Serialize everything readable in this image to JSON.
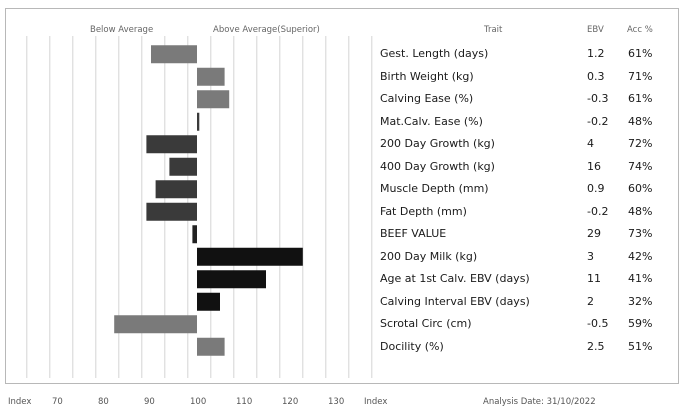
{
  "header": {
    "below": "Below Average",
    "above": "Above Average(Superior)",
    "trait": "Trait",
    "ebv": "EBV",
    "acc": "Acc %"
  },
  "footer": {
    "index_left": "Index",
    "index_right": "Index",
    "analysis": "Analysis Date: 31/10/2022"
  },
  "chart_data": {
    "type": "bar",
    "orientation": "horizontal",
    "x_axis": {
      "label": "Index",
      "ticks": [
        70,
        80,
        90,
        100,
        110,
        120,
        130
      ],
      "range": [
        60,
        140
      ],
      "baseline": 100
    },
    "grid": true,
    "categories": [
      "Gest. Length (days)",
      "Birth Weight (kg)",
      "Calving Ease (%)",
      "Mat.Calv. Ease (%)",
      "200 Day Growth (kg)",
      "400 Day Growth (kg)",
      "Muscle Depth (mm)",
      "Fat Depth (mm)",
      "BEEF VALUE",
      "200 Day Milk (kg)",
      "Age at 1st Calv. EBV (days)",
      "Calving Interval EBV (days)",
      "Scrotal Circ (cm)",
      "Docility (%)"
    ],
    "index_values": [
      90,
      106,
      107,
      100.5,
      89,
      94,
      91,
      89,
      99,
      123,
      115,
      105,
      82,
      106
    ],
    "ebv": [
      "1.2",
      "0.3",
      "-0.3",
      "-0.2",
      "4",
      "16",
      "0.9",
      "-0.2",
      "29",
      "3",
      "11",
      "2",
      "-0.5",
      "2.5"
    ],
    "acc": [
      "61%",
      "71%",
      "61%",
      "48%",
      "72%",
      "74%",
      "60%",
      "48%",
      "73%",
      "42%",
      "41%",
      "32%",
      "59%",
      "51%"
    ],
    "bar_colors": [
      "#7a7a7a",
      "#7a7a7a",
      "#7a7a7a",
      "#3a3a3a",
      "#3a3a3a",
      "#3a3a3a",
      "#3a3a3a",
      "#3a3a3a",
      "#222222",
      "#111111",
      "#111111",
      "#111111",
      "#7a7a7a",
      "#7a7a7a"
    ]
  }
}
